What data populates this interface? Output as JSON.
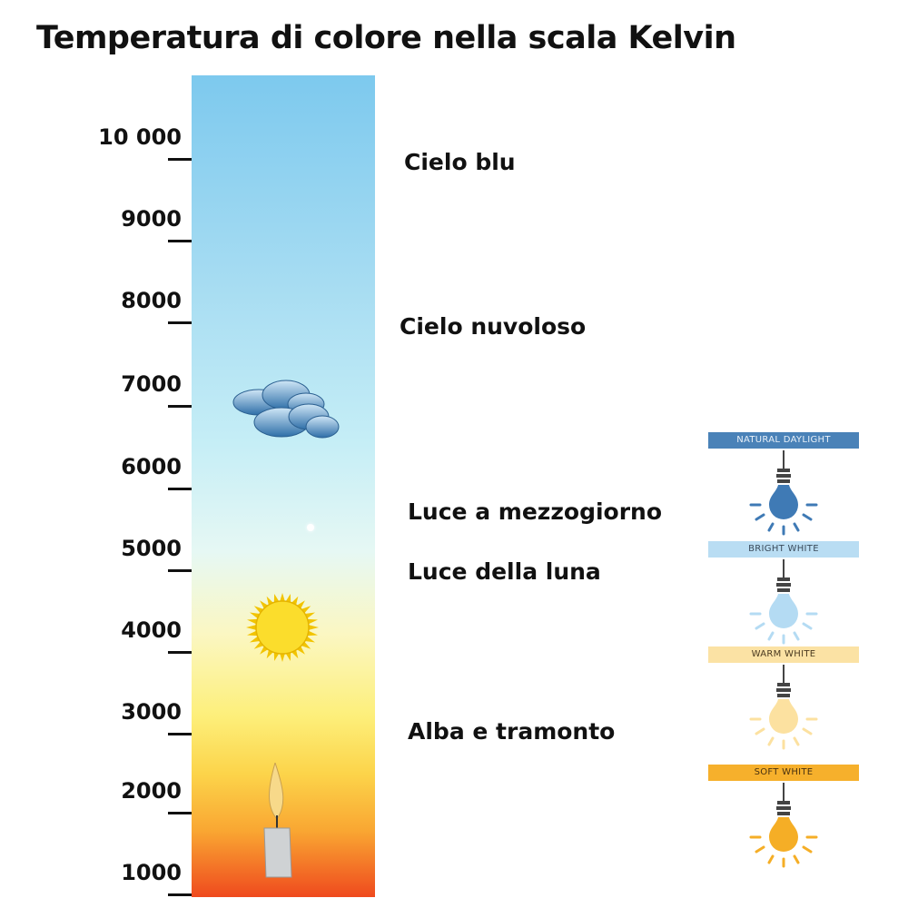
{
  "title": "Temperatura di colore nella scala Kelvin",
  "scale": {
    "ticks": [
      "10 000",
      "9000",
      "8000",
      "7000",
      "6000",
      "5000",
      "4000",
      "3000",
      "2000",
      "1000"
    ]
  },
  "labels": {
    "cielo_blu": "Cielo blu",
    "cielo_nuvoloso": "Cielo nuvoloso",
    "mezzogiorno": "Luce a mezzogiorno",
    "luna": "Luce della luna",
    "alba": "Alba e tramonto"
  },
  "bulbs": [
    {
      "label": "NATURAL DAYLIGHT",
      "banner_color": "#4a82b8",
      "text_color": "#e8f0f8",
      "bulb_color": "#3f7ab5"
    },
    {
      "label": "BRIGHT WHITE",
      "banner_color": "#b9ddf3",
      "text_color": "#3a4a5a",
      "bulb_color": "#b4dbf3"
    },
    {
      "label": "WARM WHITE",
      "banner_color": "#fbe2a4",
      "text_color": "#4a3a20",
      "bulb_color": "#fce1a0"
    },
    {
      "label": "SOFT WHITE",
      "banner_color": "#f6b02c",
      "text_color": "#4a3210",
      "bulb_color": "#f5ae26"
    }
  ]
}
